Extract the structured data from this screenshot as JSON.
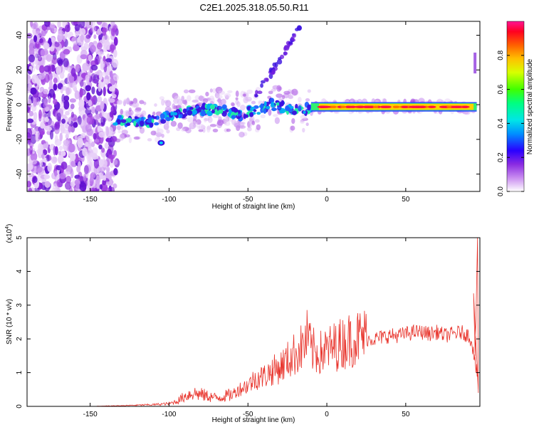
{
  "title": "C2E1.2025.318.05.50.R11",
  "chart_data": [
    {
      "type": "heatmap",
      "xlabel": "Height of straight line (km)",
      "ylabel": "Frequency (Hz)",
      "xlim": [
        -190,
        97
      ],
      "ylim": [
        -50,
        48
      ],
      "xticks": [
        -150,
        -100,
        -50,
        0,
        50
      ],
      "yticks": [
        -40,
        -20,
        0,
        20,
        40
      ],
      "colorbar": {
        "label": "Normalized spectral amplitude",
        "range": [
          0,
          1
        ],
        "ticks": [
          "0.0",
          "0.2",
          "0.4",
          "0.6",
          "0.8"
        ]
      },
      "ridge": [
        {
          "x": -134,
          "f": -9
        },
        {
          "x": -125,
          "f": -9
        },
        {
          "x": -115,
          "f": -10
        },
        {
          "x": -105,
          "f": -8
        },
        {
          "x": -95,
          "f": -6
        },
        {
          "x": -85,
          "f": -3
        },
        {
          "x": -75,
          "f": -3
        },
        {
          "x": -65,
          "f": -3
        },
        {
          "x": -55,
          "f": -6
        },
        {
          "x": -45,
          "f": -3
        },
        {
          "x": -35,
          "f": 0
        },
        {
          "x": -25,
          "f": -2
        },
        {
          "x": -15,
          "f": -3
        },
        {
          "x": -5,
          "f": -1
        },
        {
          "x": 5,
          "f": -1
        },
        {
          "x": 20,
          "f": -1
        },
        {
          "x": 40,
          "f": -1
        },
        {
          "x": 60,
          "f": -1
        },
        {
          "x": 80,
          "f": -1
        },
        {
          "x": 95,
          "f": -3
        }
      ]
    },
    {
      "type": "line",
      "xlabel": "Height of straight line (km)",
      "ylabel": "SNR (10 * v/v)",
      "yscale_label": "(x10",
      "yscale_exp": "4",
      "yscale_close": ")",
      "xlim": [
        -190,
        97
      ],
      "ylim": [
        0,
        5
      ],
      "xticks": [
        -150,
        -100,
        -50,
        0,
        50
      ],
      "yticks": [
        0,
        1,
        2,
        3,
        4,
        5
      ],
      "color": "#e8322a",
      "series": [
        {
          "x": [
            -190,
            -150,
            -130,
            -110,
            -100,
            -95,
            -90,
            -85,
            -80,
            -75,
            -70,
            -65,
            -60,
            -55,
            -50,
            -45,
            -40,
            -35,
            -30,
            -25,
            -20,
            -15,
            -12,
            -10,
            -5,
            0,
            5,
            10,
            15,
            20,
            25,
            30,
            35,
            40,
            45,
            50,
            55,
            60,
            65,
            70,
            75,
            80,
            85,
            90,
            92,
            94,
            95,
            96
          ],
          "y": [
            0,
            0,
            0.02,
            0.05,
            0.08,
            0.15,
            0.3,
            0.4,
            0.35,
            0.3,
            0.25,
            0.3,
            0.35,
            0.5,
            0.6,
            0.8,
            0.85,
            1.0,
            1.1,
            1.3,
            1.5,
            1.7,
            2.0,
            1.6,
            1.5,
            1.6,
            1.7,
            1.8,
            1.9,
            1.95,
            2.0,
            2.0,
            2.05,
            2.1,
            2.1,
            2.15,
            2.2,
            2.2,
            2.15,
            2.2,
            2.1,
            2.15,
            2.2,
            2.1,
            1.9,
            1.3,
            1.0,
            0.5
          ]
        }
      ]
    }
  ]
}
